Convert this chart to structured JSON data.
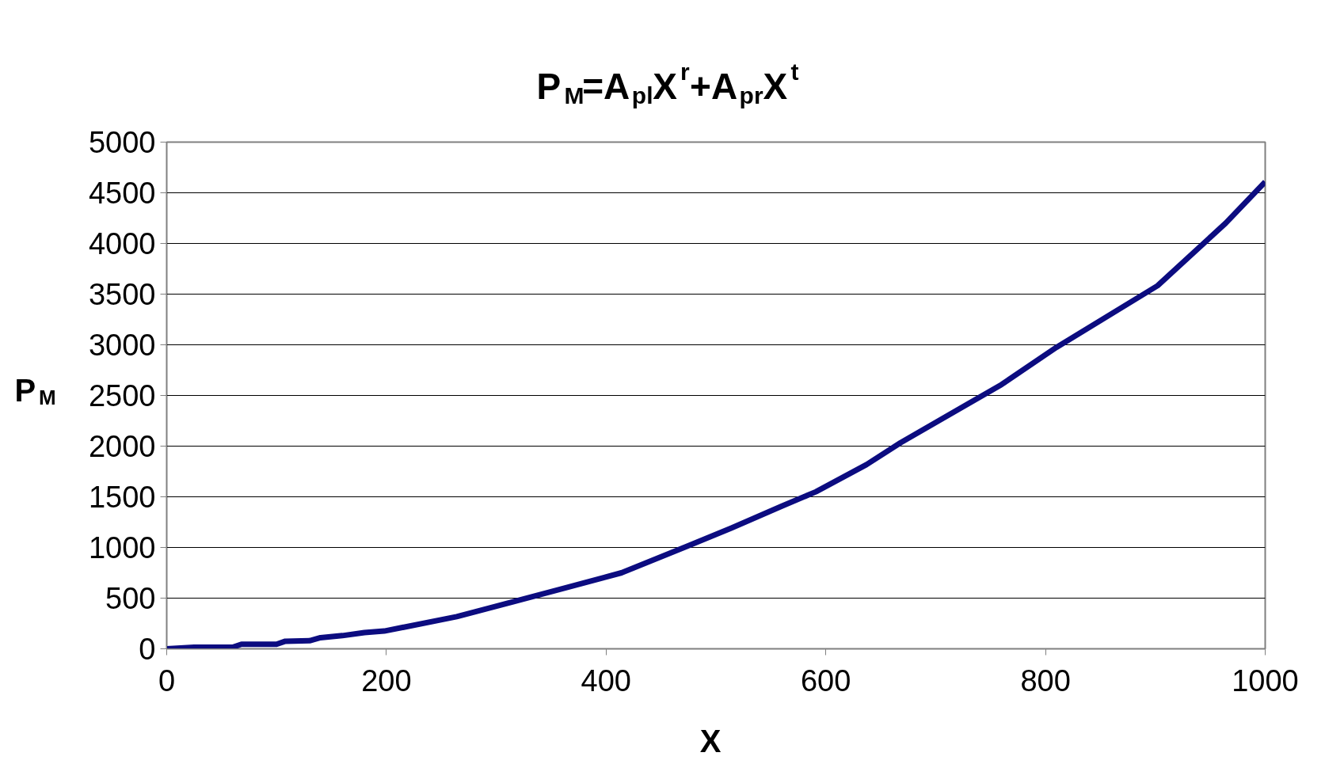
{
  "chart_data": {
    "type": "line",
    "title": "P$_{M}$=A$_{pl}$X$^{r}$+A$_{pr}$X$^{t}$",
    "xlabel": "X",
    "ylabel": "P$_{M}$",
    "x": [
      0,
      25,
      60,
      68,
      100,
      108,
      130,
      140,
      160,
      180,
      198,
      264,
      360,
      414,
      475,
      514,
      560,
      591,
      637,
      668,
      760,
      810,
      902,
      964,
      1000
    ],
    "series": [
      {
        "color": "#0c0c80",
        "values": [
          0,
          15,
          15,
          45,
          45,
          75,
          80,
          110,
          130,
          160,
          175,
          317,
          592,
          750,
          1017,
          1192,
          1408,
          1550,
          1817,
          2033,
          2608,
          2975,
          3583,
          4200,
          4608
        ]
      }
    ],
    "xlim": [
      0,
      1000
    ],
    "ylim": [
      0,
      5000
    ],
    "xticks": [
      0,
      200,
      400,
      600,
      800,
      1000
    ],
    "yticks": [
      0,
      500,
      1000,
      1500,
      2000,
      2500,
      3000,
      3500,
      4000,
      4500,
      5000
    ],
    "grid": "y",
    "line_style": "solid",
    "marker": "none"
  }
}
